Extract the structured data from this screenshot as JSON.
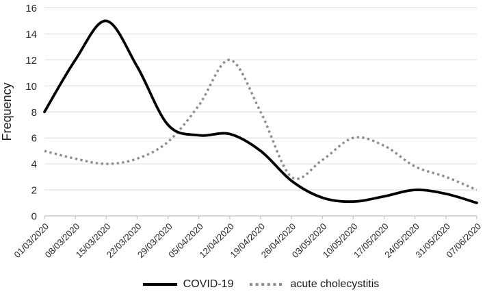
{
  "chart_data": {
    "type": "line",
    "title": "",
    "xlabel": "",
    "ylabel": "Frequency",
    "categories": [
      "01/03/2020",
      "08/03/2020",
      "15/03/2020",
      "22/03/2020",
      "29/03/2020",
      "05/04/2020",
      "12/04/2020",
      "19/04/2020",
      "26/04/2020",
      "03/05/2020",
      "10/05/2020",
      "17/05/2020",
      "24/05/2020",
      "31/05/2020",
      "07/06/2020"
    ],
    "series": [
      {
        "name": "COVID-19",
        "line_style": "solid",
        "color": "#000000",
        "values": [
          8,
          12,
          15,
          11.5,
          7,
          6.2,
          6.3,
          5,
          2.7,
          1.4,
          1.1,
          1.5,
          2,
          1.7,
          1
        ]
      },
      {
        "name": "acute cholecystitis",
        "line_style": "dotted",
        "color": "#8c8c8c",
        "values": [
          5,
          4.4,
          4,
          4.4,
          5.7,
          8.5,
          12,
          8,
          3,
          4.3,
          6,
          5.4,
          3.8,
          3,
          2
        ]
      }
    ],
    "ylim": [
      0,
      16
    ],
    "ytick_step": 2,
    "ytick_labels": [
      "0",
      "2",
      "4",
      "6",
      "8",
      "10",
      "12",
      "14",
      "16"
    ],
    "grid": "horizontal",
    "gridline_color": "#d9d9d9",
    "axis_line_color": "#bfbfbf",
    "tick_label_color": "#262626",
    "legend_position": "bottom"
  }
}
